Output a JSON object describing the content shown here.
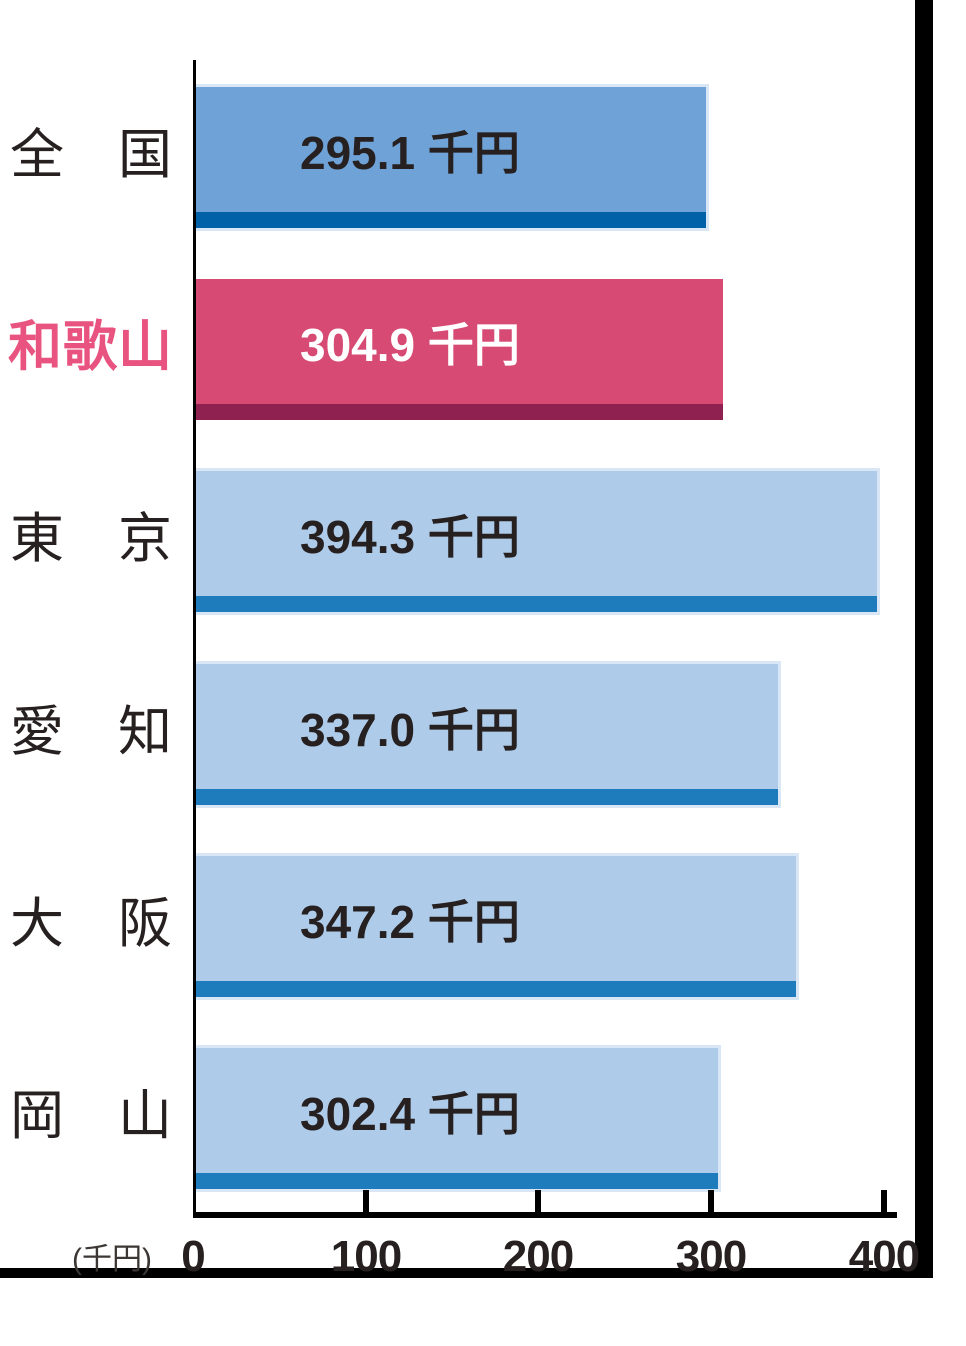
{
  "chart_data": {
    "type": "bar",
    "orientation": "horizontal",
    "title": "",
    "unit": "千円",
    "axis_unit_label": "(千円)",
    "xlim": [
      0,
      400
    ],
    "x_ticks": [
      0,
      100,
      200,
      300,
      400
    ],
    "grid": false,
    "legend": false,
    "highlight_index": 1,
    "categories": [
      "全　国",
      "和歌山",
      "東　京",
      "愛　知",
      "大　阪",
      "岡　山"
    ],
    "values": [
      295.1,
      304.9,
      394.3,
      337.0,
      347.2,
      302.4
    ],
    "bars": [
      {
        "category": "全　国",
        "value": 295.1,
        "value_label": "295.1 千円",
        "style": "national"
      },
      {
        "category": "和歌山",
        "value": 304.9,
        "value_label": "304.9 千円",
        "style": "highlight"
      },
      {
        "category": "東　京",
        "value": 394.3,
        "value_label": "394.3 千円",
        "style": "default"
      },
      {
        "category": "愛　知",
        "value": 337.0,
        "value_label": "337.0 千円",
        "style": "default"
      },
      {
        "category": "大　阪",
        "value": 347.2,
        "value_label": "347.2 千円",
        "style": "default"
      },
      {
        "category": "岡　山",
        "value": 302.4,
        "value_label": "302.4 千円",
        "style": "default"
      }
    ],
    "colors": {
      "national_bar": "#6fa2d6",
      "national_strip": "#0061a8",
      "default_bar": "#aecbe9",
      "default_strip": "#1e7cbc",
      "highlight_bar": "#d74a73",
      "highlight_strip": "#8e2150",
      "highlight_label": "#e8537f",
      "text": "#262020",
      "axis": "#000000"
    }
  }
}
